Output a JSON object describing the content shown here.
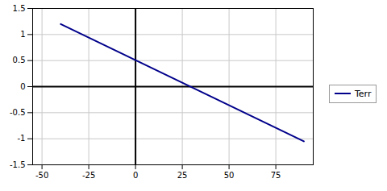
{
  "chart_data": {
    "type": "line",
    "x": [
      -40,
      90
    ],
    "series": [
      {
        "name": "Terr",
        "color": "#00008B",
        "values": [
          1.2,
          -1.05
        ]
      }
    ],
    "xlim": [
      -55,
      95
    ],
    "xticks": [
      -50,
      -25,
      0,
      25,
      50,
      75
    ],
    "ylim": [
      -1.5,
      1.5
    ],
    "yticks": [
      -1.5,
      -1,
      -0.5,
      0,
      0.5,
      1,
      1.5
    ],
    "grid": true,
    "legend": "right"
  }
}
